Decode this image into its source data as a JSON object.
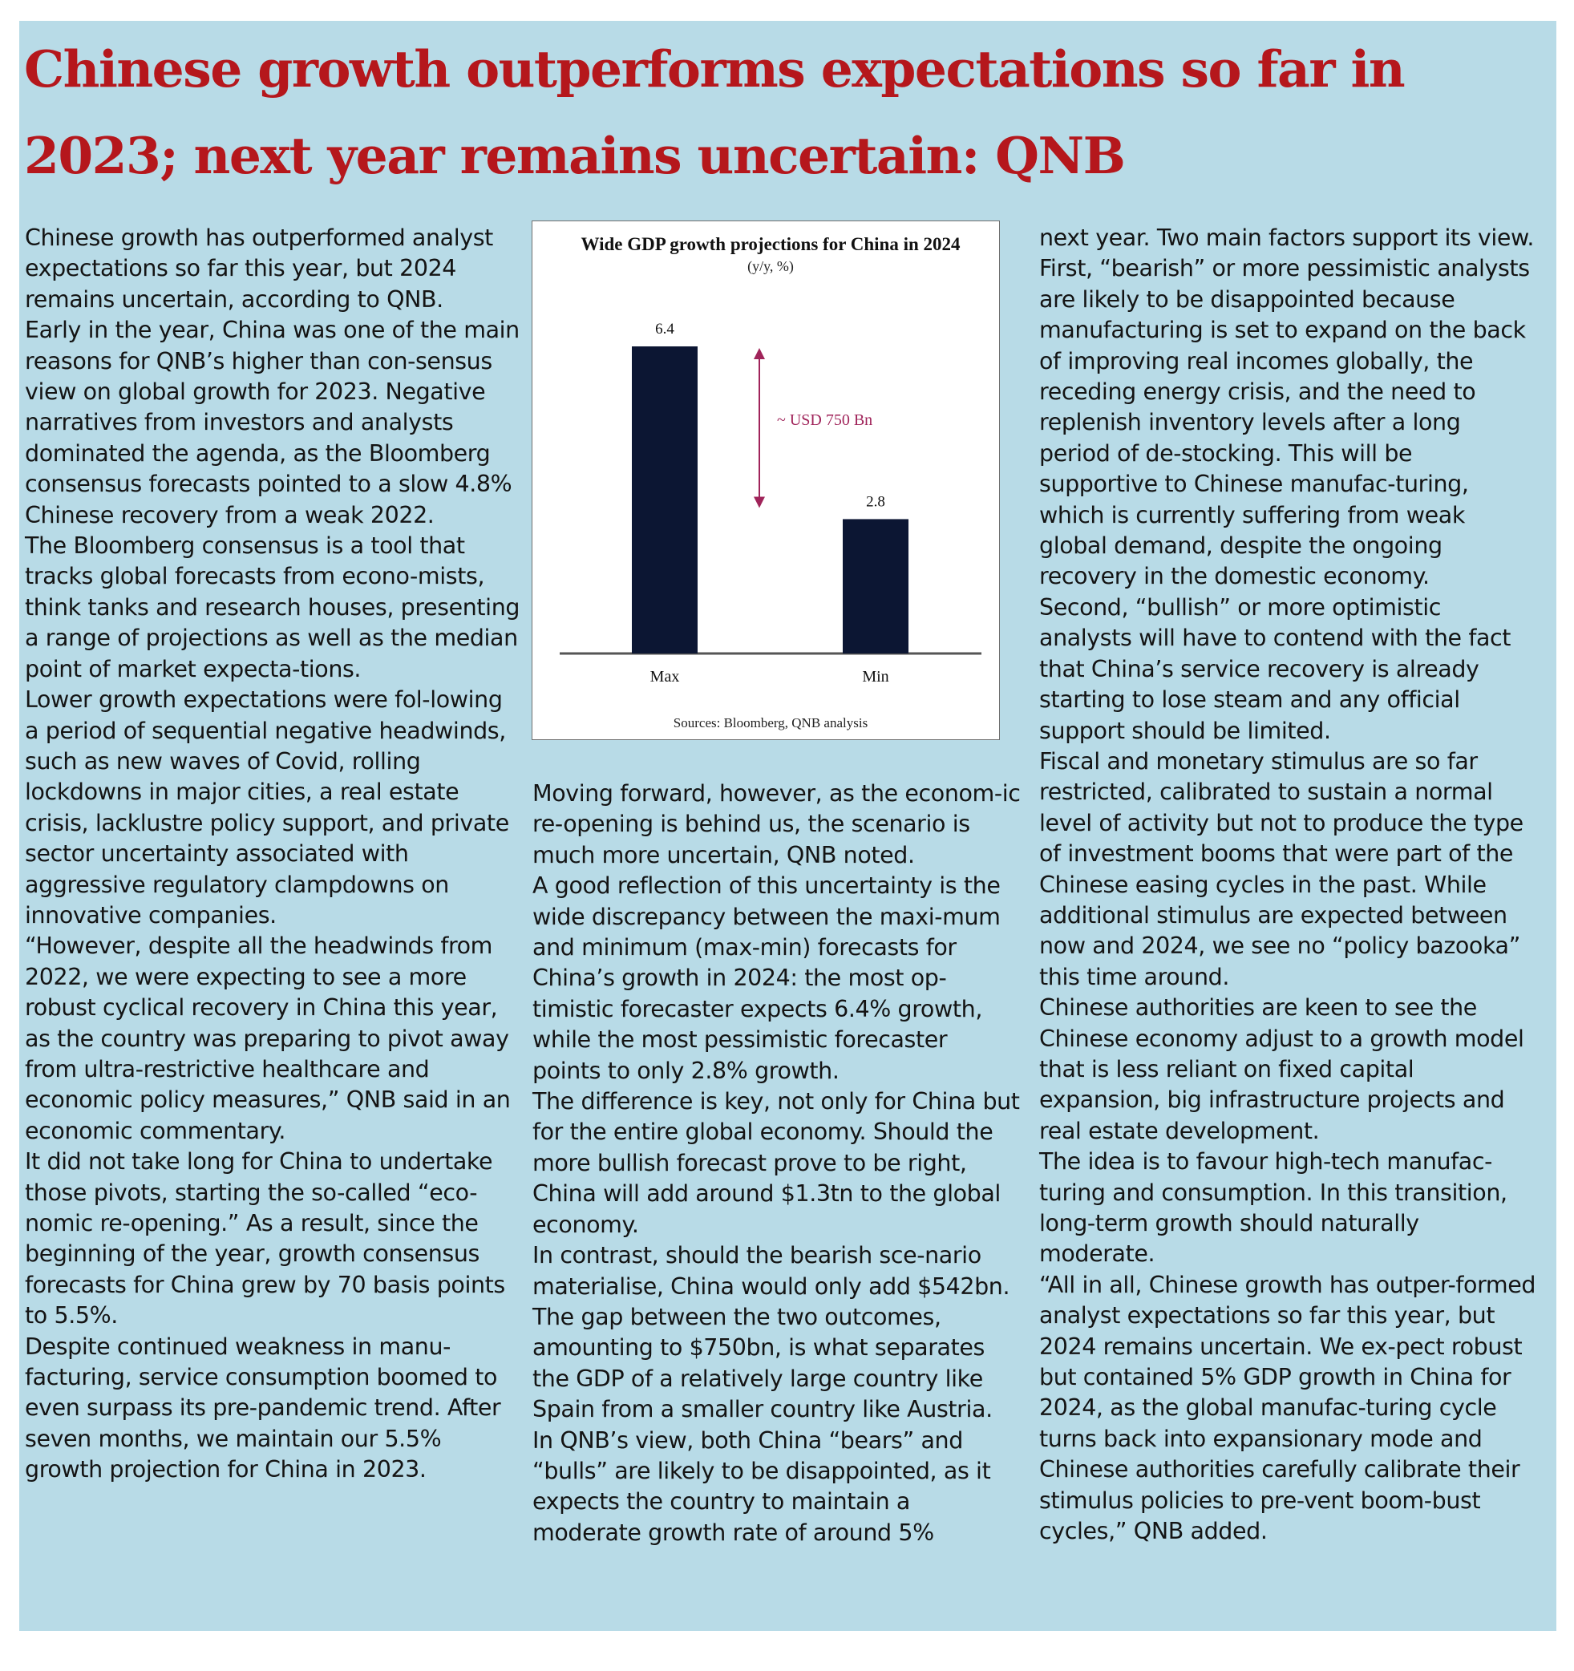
{
  "headline": "Chinese growth outperforms expectations so far in 2023; next year remains uncertain: QNB",
  "columns": {
    "col1": [
      "Chinese growth has outperformed analyst expectations so far this year, but 2024 remains uncertain, according to QNB.",
      "Early in the year, China was one of the main reasons for QNB’s higher than con-sensus view on global growth for 2023. Negative narratives from investors and analysts dominated the agenda, as the Bloomberg consensus forecasts pointed to a slow 4.8% Chinese recovery from a weak 2022.",
      "The Bloomberg consensus is a tool that tracks global forecasts from econo-mists, think tanks and research houses, presenting a range of projections as well as the median point of market expecta-tions.",
      "Lower growth expectations were fol-lowing a period of sequential negative headwinds, such as new waves of Covid, rolling lockdowns in major cities, a real estate crisis, lacklustre policy support, and private sector uncertainty associated with aggressive regulatory clampdowns on innovative companies.",
      "“However, despite all the headwinds from 2022, we were expecting to see a more robust cyclical recovery in China this year, as the country was preparing to pivot away from ultra-restrictive healthcare and economic policy measures,” QNB said in an economic commentary.",
      "It did not take long for China to undertake those pivots, starting the so-called “eco-nomic re-opening.” As a result, since the beginning of the year, growth consensus forecasts for China grew by 70 basis points to 5.5%.",
      "Despite continued weakness in manu-facturing, service consumption boomed to even surpass its pre-pandemic trend. After seven months, we maintain our 5.5% growth projection for China in 2023."
    ],
    "col2": [
      "Moving forward, however, as the econom-ic re-opening is behind us, the scenario is much more uncertain, QNB noted.",
      "A good reflection of this uncertainty is the wide discrepancy between the maxi-mum and minimum (max-min) forecasts for China’s growth in 2024: the most op-timistic forecaster expects 6.4% growth, while the most pessimistic forecaster points to only 2.8% growth.",
      "The difference is key, not only for China but for the entire global economy. Should the more bullish forecast prove to be right, China will add around $1.3tn to the global economy.",
      "In contrast, should the bearish sce-nario materialise, China would only add $542bn. The gap between the two outcomes, amounting to $750bn, is what separates the GDP of a relatively large country like Spain from a smaller country like Austria.",
      "In QNB’s view, both China “bears” and “bulls” are likely to be disappointed, as it expects the country to maintain a moderate growth rate of around 5%"
    ],
    "col3": [
      "next year. Two main factors support its view.",
      "First, “bearish” or more pessimistic analysts are likely to be disappointed because manufacturing is set to expand on the back of improving real incomes globally, the receding energy crisis, and the need to replenish inventory levels after a long period of de-stocking. This will be supportive to Chinese manufac-turing, which is currently suffering from weak global demand, despite the ongoing recovery in the domestic economy.",
      "Second, “bullish” or more optimistic analysts will have to contend with the fact that China’s service recovery is already starting to lose steam and any official support should be limited.",
      "Fiscal and monetary stimulus are so far restricted, calibrated to sustain a normal level of activity but not to produce the type of investment booms that were part of the Chinese easing cycles in the past. While additional stimulus are expected between now and 2024, we see no “policy bazooka” this time around.",
      "Chinese authorities are keen to see the Chinese economy adjust to a growth model that is less reliant on fixed capital expansion, big infrastructure projects and real estate development.",
      "The idea is to favour high-tech manufac-turing and consumption. In this transition, long-term growth should naturally moderate.",
      "“All in all, Chinese growth has outper-formed analyst expectations so far this year, but 2024 remains uncertain. We ex-pect robust but contained 5% GDP growth in China for 2024, as the global manufac-turing cycle turns back into expansionary mode and Chinese authorities carefully calibrate their stimulus policies to pre-vent boom-bust cycles,” QNB added."
    ]
  },
  "chart_data": {
    "type": "bar",
    "title": "Wide GDP growth projections for China in 2024",
    "subtitle": "(y/y, %)",
    "categories": [
      "Max",
      "Min"
    ],
    "values": [
      6.4,
      2.8
    ],
    "value_labels": [
      "6.4",
      "2.8"
    ],
    "annotation": "~ USD 750 Bn",
    "source": "Sources: Bloomberg, QNB analysis",
    "ylim": [
      0,
      7
    ],
    "grid": false,
    "legend": "none",
    "colors": {
      "bar": "#0c1633",
      "annotation": "#a0245a",
      "axis": "#555555"
    }
  }
}
